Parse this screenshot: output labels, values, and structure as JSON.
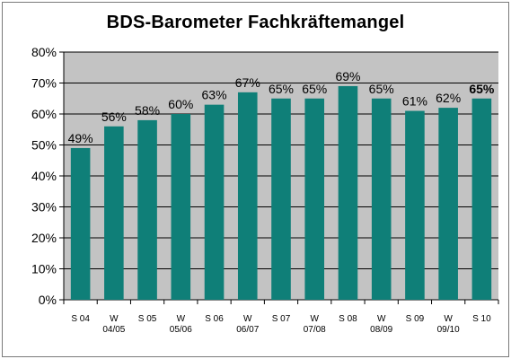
{
  "chart_data": {
    "type": "bar",
    "title": "BDS-Barometer  Fachkräftemangel",
    "categories": [
      [
        "S 04"
      ],
      [
        "W",
        "04/05"
      ],
      [
        "S 05"
      ],
      [
        "W",
        "05/06"
      ],
      [
        "S 06"
      ],
      [
        "W",
        "06/07"
      ],
      [
        "S 07"
      ],
      [
        "W",
        "07/08"
      ],
      [
        "S 08"
      ],
      [
        "W",
        "08/09"
      ],
      [
        "S 09"
      ],
      [
        "W",
        "09/10"
      ],
      [
        "S 10"
      ]
    ],
    "values": [
      49,
      56,
      58,
      60,
      63,
      67,
      65,
      65,
      69,
      65,
      61,
      62,
      65
    ],
    "data_labels": [
      "49%",
      "56%",
      "58%",
      "60%",
      "63%",
      "67%",
      "65%",
      "65%",
      "69%",
      "65%",
      "61%",
      "62%",
      "65%"
    ],
    "bold_labels": [
      12
    ],
    "ylim": [
      0,
      80
    ],
    "yticks": [
      "0%",
      "10%",
      "20%",
      "30%",
      "40%",
      "50%",
      "60%",
      "70%",
      "80%"
    ],
    "xlabel": "",
    "ylabel": "",
    "grid": true,
    "legend": "none",
    "colors": {
      "bar": "#0f7f78",
      "plot_bg": "#c3c3c3",
      "frame": "#7a7a7a"
    }
  }
}
